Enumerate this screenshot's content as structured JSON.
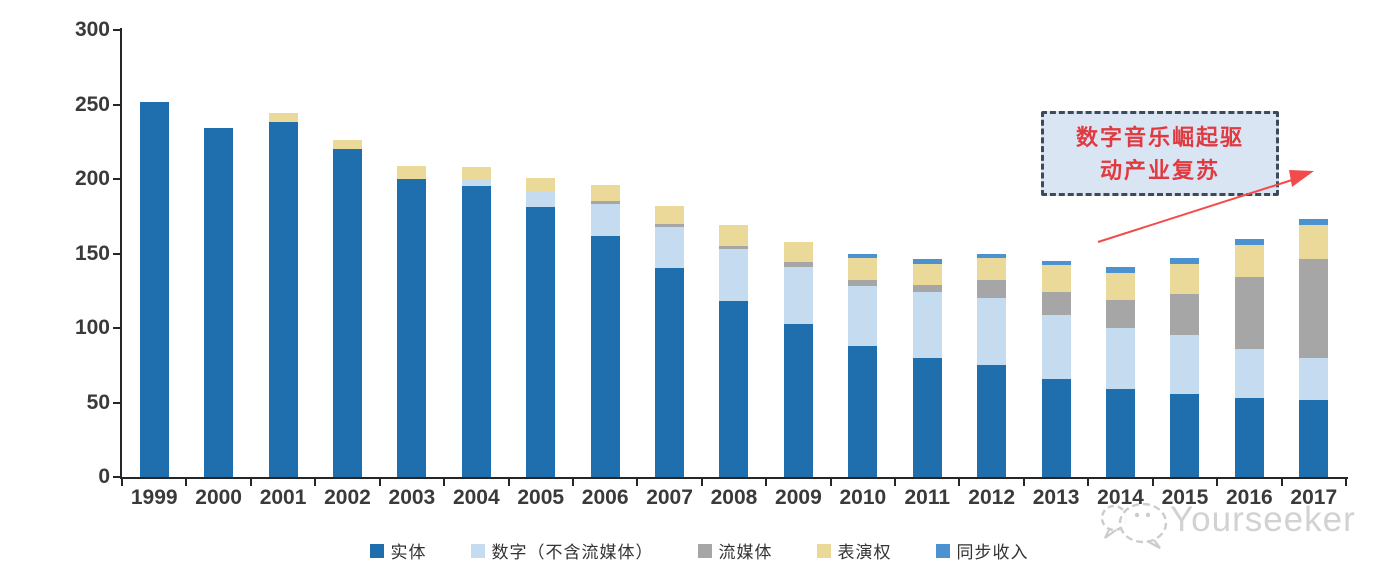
{
  "chart_data": {
    "type": "bar",
    "stacked": true,
    "title": "",
    "xlabel": "",
    "ylabel": "",
    "categories": [
      "1999",
      "2000",
      "2001",
      "2002",
      "2003",
      "2004",
      "2005",
      "2006",
      "2007",
      "2008",
      "2009",
      "2010",
      "2011",
      "2012",
      "2013",
      "2014",
      "2015",
      "2016",
      "2017"
    ],
    "series": [
      {
        "name": "实体",
        "color": "#1f6eae",
        "values": [
          252,
          234,
          238,
          220,
          200,
          195,
          181,
          162,
          140,
          118,
          103,
          88,
          80,
          75,
          66,
          59,
          56,
          53,
          52
        ]
      },
      {
        "name": "数字（不含流媒体）",
        "color": "#c5dcf0",
        "values": [
          0,
          0,
          0,
          0,
          0,
          5,
          11,
          21,
          28,
          35,
          38,
          40,
          44,
          45,
          43,
          41,
          39,
          33,
          28
        ]
      },
      {
        "name": "流媒体",
        "color": "#a6a6a6",
        "values": [
          0,
          0,
          0,
          0,
          0,
          0,
          0,
          2,
          2,
          2,
          3,
          4,
          5,
          12,
          15,
          19,
          28,
          48,
          66
        ]
      },
      {
        "name": "表演权",
        "color": "#ebd99a",
        "values": [
          0,
          0,
          6,
          6,
          9,
          8,
          9,
          11,
          12,
          14,
          14,
          15,
          14,
          15,
          18,
          18,
          20,
          22,
          23
        ]
      },
      {
        "name": "同步收入",
        "color": "#4c92d0",
        "values": [
          0,
          0,
          0,
          0,
          0,
          0,
          0,
          0,
          0,
          0,
          0,
          3,
          3,
          3,
          3,
          4,
          4,
          4,
          4
        ]
      }
    ],
    "ylim": [
      0,
      300
    ],
    "yticks": [
      0,
      50,
      100,
      150,
      200,
      250,
      300
    ],
    "grid": false,
    "legend_position": "bottom"
  },
  "annotation": {
    "line1": "数字音乐崛起驱",
    "line2": "动产业复苏",
    "full_text": "数字音乐崛起驱动产业复苏",
    "text_color": "#e03a40",
    "box_fill": "#dae5f3",
    "box_border": "#3e4a5c",
    "arrow_color": "#f24b4b"
  },
  "watermark": {
    "text": "Yourseeker",
    "logo": "chat-bubbles-icon",
    "color": "#c3c3c3"
  },
  "colors": {
    "axis": "#262626",
    "tick_label": "#3a3a3a",
    "background": "#ffffff"
  }
}
